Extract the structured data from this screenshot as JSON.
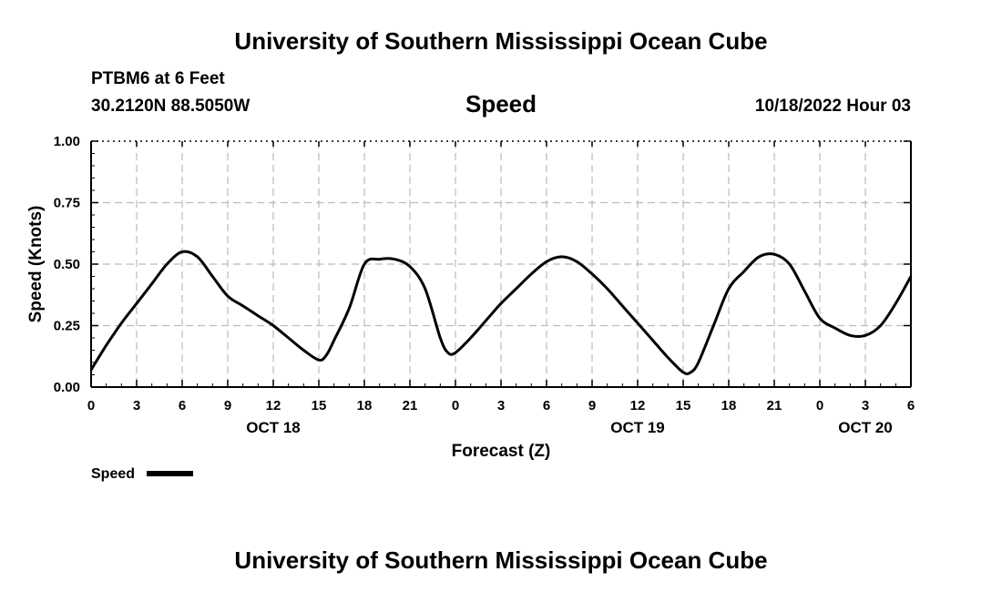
{
  "page": {
    "title_top": "University of Southern Mississippi Ocean Cube",
    "title_bottom": "University of Southern Mississippi Ocean Cube",
    "station": "PTBM6 at 6 Feet",
    "coords": "30.2120N  88.5050W",
    "datetime": "10/18/2022 Hour 03"
  },
  "chart_data": {
    "type": "line",
    "title": "Speed",
    "xlabel": "Forecast (Z)",
    "ylabel": "Speed (Knots)",
    "ylim": [
      0,
      1
    ],
    "xlim": [
      0,
      54
    ],
    "grid": true,
    "x_tick_values": [
      0,
      3,
      6,
      9,
      12,
      15,
      18,
      21,
      24,
      27,
      30,
      33,
      36,
      39,
      42,
      45,
      48,
      51,
      54
    ],
    "x_tick_labels": [
      "0",
      "3",
      "6",
      "9",
      "12",
      "15",
      "18",
      "21",
      "0",
      "3",
      "6",
      "9",
      "12",
      "15",
      "18",
      "21",
      "0",
      "3",
      "6"
    ],
    "y_tick_values": [
      0,
      0.25,
      0.5,
      0.75,
      1.0
    ],
    "y_tick_labels": [
      "0.00",
      "0.25",
      "0.50",
      "0.75",
      "1.00"
    ],
    "day_labels": [
      {
        "x": 12,
        "label": "OCT 18"
      },
      {
        "x": 36,
        "label": "OCT 19"
      },
      {
        "x": 51,
        "label": "OCT 20"
      }
    ],
    "legend": {
      "label": "Speed",
      "placement": "bottom-left"
    },
    "series": [
      {
        "name": "Speed",
        "x": [
          0,
          1,
          2,
          3,
          4,
          5,
          6,
          7,
          8,
          9,
          10,
          11,
          12,
          13,
          14,
          15,
          15.5,
          16,
          17,
          18,
          19,
          20,
          21,
          22,
          23,
          23.5,
          24,
          25,
          26,
          27,
          28,
          29,
          30,
          31,
          32,
          33,
          34,
          35,
          36,
          37,
          38,
          39,
          39.5,
          40,
          41,
          42,
          43,
          44,
          45,
          46,
          47,
          48,
          49,
          50,
          51,
          52,
          53,
          54
        ],
        "values": [
          0.07,
          0.17,
          0.26,
          0.34,
          0.42,
          0.5,
          0.55,
          0.53,
          0.45,
          0.37,
          0.33,
          0.29,
          0.25,
          0.2,
          0.15,
          0.11,
          0.13,
          0.19,
          0.32,
          0.5,
          0.52,
          0.52,
          0.49,
          0.4,
          0.2,
          0.14,
          0.14,
          0.2,
          0.27,
          0.34,
          0.4,
          0.46,
          0.51,
          0.53,
          0.51,
          0.46,
          0.4,
          0.33,
          0.26,
          0.19,
          0.12,
          0.06,
          0.06,
          0.1,
          0.25,
          0.4,
          0.47,
          0.53,
          0.54,
          0.5,
          0.39,
          0.28,
          0.24,
          0.21,
          0.21,
          0.25,
          0.34,
          0.45
        ]
      }
    ]
  }
}
